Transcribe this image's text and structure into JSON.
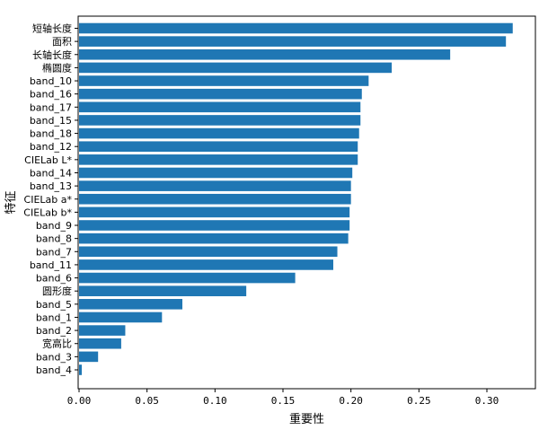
{
  "chart_data": {
    "type": "bar",
    "orientation": "horizontal",
    "title": "",
    "xlabel": "重要性",
    "ylabel": "特征",
    "xlim": [
      0,
      0.35
    ],
    "xticks": [
      "0.00",
      "0.05",
      "0.10",
      "0.15",
      "0.20",
      "0.25",
      "0.30"
    ],
    "grid": false,
    "bar_color": "#1f77b4",
    "categories": [
      "短轴长度",
      "面积",
      "长轴长度",
      "椭圆度",
      "band_10",
      "band_16",
      "band_17",
      "band_15",
      "band_18",
      "band_12",
      "CIELab L*",
      "band_14",
      "band_13",
      "CIELab a*",
      "CIELab b*",
      "band_9",
      "band_8",
      "band_7",
      "band_11",
      "band_6",
      "圆形度",
      "band_5",
      "band_1",
      "band_2",
      "宽高比",
      "band_3",
      "band_4"
    ],
    "values": [
      0.319,
      0.314,
      0.273,
      0.23,
      0.213,
      0.208,
      0.207,
      0.207,
      0.206,
      0.205,
      0.205,
      0.201,
      0.2,
      0.2,
      0.199,
      0.199,
      0.198,
      0.19,
      0.187,
      0.159,
      0.123,
      0.076,
      0.061,
      0.034,
      0.031,
      0.014,
      0.002
    ]
  }
}
